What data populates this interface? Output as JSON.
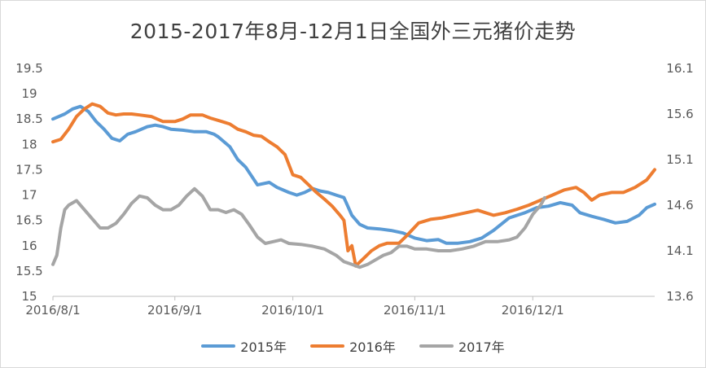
{
  "chart_data": {
    "type": "line",
    "title": "2015-2017年8月-12月1日全国外三元猪价走势",
    "xlabel": "",
    "ylabel": "",
    "x_tick_labels": [
      "2016/8/1",
      "2016/9/1",
      "2016/10/1",
      "2016/11/1",
      "2016/12/1"
    ],
    "x_tick_days": [
      0,
      31,
      61,
      92,
      122
    ],
    "x_range_days": [
      0,
      153
    ],
    "y_left": {
      "min": 15,
      "max": 19.5,
      "ticks": [
        "15",
        "15.5",
        "16",
        "16.5",
        "17",
        "17.5",
        "18",
        "18.5",
        "19",
        "19.5"
      ]
    },
    "y_right": {
      "min": 13.6,
      "max": 16.1,
      "ticks": [
        "13.6",
        "14.1",
        "14.6",
        "15.1",
        "15.6",
        "16.1"
      ]
    },
    "grid": false,
    "legend_position": "bottom",
    "series": [
      {
        "name": "2015年",
        "color": "#5b9bd5",
        "axis": "left",
        "points": [
          [
            0,
            18.5
          ],
          [
            3,
            18.6
          ],
          [
            5,
            18.7
          ],
          [
            7,
            18.75
          ],
          [
            9,
            18.65
          ],
          [
            11,
            18.45
          ],
          [
            13,
            18.3
          ],
          [
            15,
            18.12
          ],
          [
            17,
            18.07
          ],
          [
            19,
            18.2
          ],
          [
            21,
            18.25
          ],
          [
            24,
            18.35
          ],
          [
            26,
            18.38
          ],
          [
            28,
            18.35
          ],
          [
            30,
            18.3
          ],
          [
            33,
            18.28
          ],
          [
            36,
            18.25
          ],
          [
            39,
            18.25
          ],
          [
            41,
            18.2
          ],
          [
            42,
            18.15
          ],
          [
            45,
            17.95
          ],
          [
            47,
            17.7
          ],
          [
            49,
            17.55
          ],
          [
            52,
            17.2
          ],
          [
            55,
            17.25
          ],
          [
            57,
            17.15
          ],
          [
            60,
            17.05
          ],
          [
            62,
            17.0
          ],
          [
            64,
            17.05
          ],
          [
            66,
            17.13
          ],
          [
            68,
            17.08
          ],
          [
            70,
            17.05
          ],
          [
            72,
            17.0
          ],
          [
            74,
            16.95
          ],
          [
            76,
            16.6
          ],
          [
            78,
            16.42
          ],
          [
            80,
            16.35
          ],
          [
            83,
            16.33
          ],
          [
            86,
            16.3
          ],
          [
            89,
            16.25
          ],
          [
            92,
            16.15
          ],
          [
            95,
            16.1
          ],
          [
            98,
            16.12
          ],
          [
            100,
            16.05
          ],
          [
            103,
            16.05
          ],
          [
            106,
            16.08
          ],
          [
            109,
            16.15
          ],
          [
            112,
            16.3
          ],
          [
            116,
            16.55
          ],
          [
            120,
            16.65
          ],
          [
            123,
            16.75
          ],
          [
            126,
            16.78
          ],
          [
            129,
            16.85
          ],
          [
            132,
            16.8
          ],
          [
            134,
            16.65
          ],
          [
            137,
            16.58
          ],
          [
            140,
            16.52
          ],
          [
            143,
            16.45
          ],
          [
            146,
            16.48
          ],
          [
            149,
            16.6
          ],
          [
            151,
            16.75
          ],
          [
            153,
            16.82
          ]
        ]
      },
      {
        "name": "2016年",
        "color": "#ed7d31",
        "axis": "left",
        "points": [
          [
            0,
            18.05
          ],
          [
            2,
            18.1
          ],
          [
            4,
            18.3
          ],
          [
            6,
            18.55
          ],
          [
            8,
            18.7
          ],
          [
            10,
            18.8
          ],
          [
            12,
            18.75
          ],
          [
            14,
            18.62
          ],
          [
            16,
            18.58
          ],
          [
            18,
            18.6
          ],
          [
            20,
            18.6
          ],
          [
            22,
            18.58
          ],
          [
            25,
            18.55
          ],
          [
            28,
            18.45
          ],
          [
            31,
            18.45
          ],
          [
            33,
            18.5
          ],
          [
            35,
            18.58
          ],
          [
            38,
            18.58
          ],
          [
            40,
            18.52
          ],
          [
            43,
            18.45
          ],
          [
            45,
            18.4
          ],
          [
            47,
            18.3
          ],
          [
            49,
            18.25
          ],
          [
            51,
            18.18
          ],
          [
            53,
            18.16
          ],
          [
            55,
            18.05
          ],
          [
            57,
            17.95
          ],
          [
            59,
            17.8
          ],
          [
            61,
            17.4
          ],
          [
            63,
            17.35
          ],
          [
            65,
            17.2
          ],
          [
            67,
            17.05
          ],
          [
            69,
            16.92
          ],
          [
            71,
            16.78
          ],
          [
            73,
            16.6
          ],
          [
            74,
            16.5
          ],
          [
            75,
            15.9
          ],
          [
            76,
            16.0
          ],
          [
            77,
            15.6
          ],
          [
            79,
            15.75
          ],
          [
            81,
            15.9
          ],
          [
            83,
            16.0
          ],
          [
            85,
            16.05
          ],
          [
            88,
            16.05
          ],
          [
            90,
            16.2
          ],
          [
            93,
            16.45
          ],
          [
            96,
            16.52
          ],
          [
            99,
            16.55
          ],
          [
            102,
            16.6
          ],
          [
            105,
            16.65
          ],
          [
            108,
            16.7
          ],
          [
            110,
            16.65
          ],
          [
            112,
            16.6
          ],
          [
            115,
            16.65
          ],
          [
            118,
            16.72
          ],
          [
            121,
            16.8
          ],
          [
            124,
            16.9
          ],
          [
            127,
            17.0
          ],
          [
            130,
            17.1
          ],
          [
            133,
            17.15
          ],
          [
            135,
            17.05
          ],
          [
            137,
            16.9
          ],
          [
            139,
            17.0
          ],
          [
            142,
            17.05
          ],
          [
            145,
            17.05
          ],
          [
            148,
            17.15
          ],
          [
            151,
            17.3
          ],
          [
            153,
            17.5
          ]
        ]
      },
      {
        "name": "2017年",
        "color": "#a5a5a5",
        "axis": "right",
        "points": [
          [
            0,
            13.95
          ],
          [
            1,
            14.05
          ],
          [
            2,
            14.35
          ],
          [
            3,
            14.55
          ],
          [
            4,
            14.6
          ],
          [
            6,
            14.65
          ],
          [
            8,
            14.55
          ],
          [
            10,
            14.45
          ],
          [
            12,
            14.35
          ],
          [
            14,
            14.35
          ],
          [
            16,
            14.4
          ],
          [
            18,
            14.5
          ],
          [
            20,
            14.62
          ],
          [
            22,
            14.7
          ],
          [
            24,
            14.68
          ],
          [
            26,
            14.6
          ],
          [
            28,
            14.55
          ],
          [
            30,
            14.55
          ],
          [
            32,
            14.6
          ],
          [
            34,
            14.7
          ],
          [
            36,
            14.78
          ],
          [
            38,
            14.7
          ],
          [
            40,
            14.55
          ],
          [
            42,
            14.55
          ],
          [
            44,
            14.52
          ],
          [
            46,
            14.55
          ],
          [
            48,
            14.5
          ],
          [
            50,
            14.38
          ],
          [
            52,
            14.25
          ],
          [
            54,
            14.18
          ],
          [
            56,
            14.2
          ],
          [
            58,
            14.22
          ],
          [
            60,
            14.18
          ],
          [
            63,
            14.17
          ],
          [
            66,
            14.15
          ],
          [
            69,
            14.12
          ],
          [
            72,
            14.05
          ],
          [
            74,
            13.98
          ],
          [
            76,
            13.95
          ],
          [
            78,
            13.92
          ],
          [
            80,
            13.95
          ],
          [
            82,
            14.0
          ],
          [
            84,
            14.05
          ],
          [
            86,
            14.08
          ],
          [
            88,
            14.15
          ],
          [
            90,
            14.15
          ],
          [
            92,
            14.12
          ],
          [
            95,
            14.12
          ],
          [
            98,
            14.1
          ],
          [
            101,
            14.1
          ],
          [
            104,
            14.12
          ],
          [
            107,
            14.15
          ],
          [
            110,
            14.2
          ],
          [
            113,
            14.2
          ],
          [
            116,
            14.22
          ],
          [
            118,
            14.25
          ],
          [
            120,
            14.35
          ],
          [
            122,
            14.5
          ],
          [
            124,
            14.6
          ],
          [
            125,
            14.68
          ]
        ]
      }
    ]
  },
  "legend": {
    "items": [
      "2015年",
      "2016年",
      "2017年"
    ]
  }
}
